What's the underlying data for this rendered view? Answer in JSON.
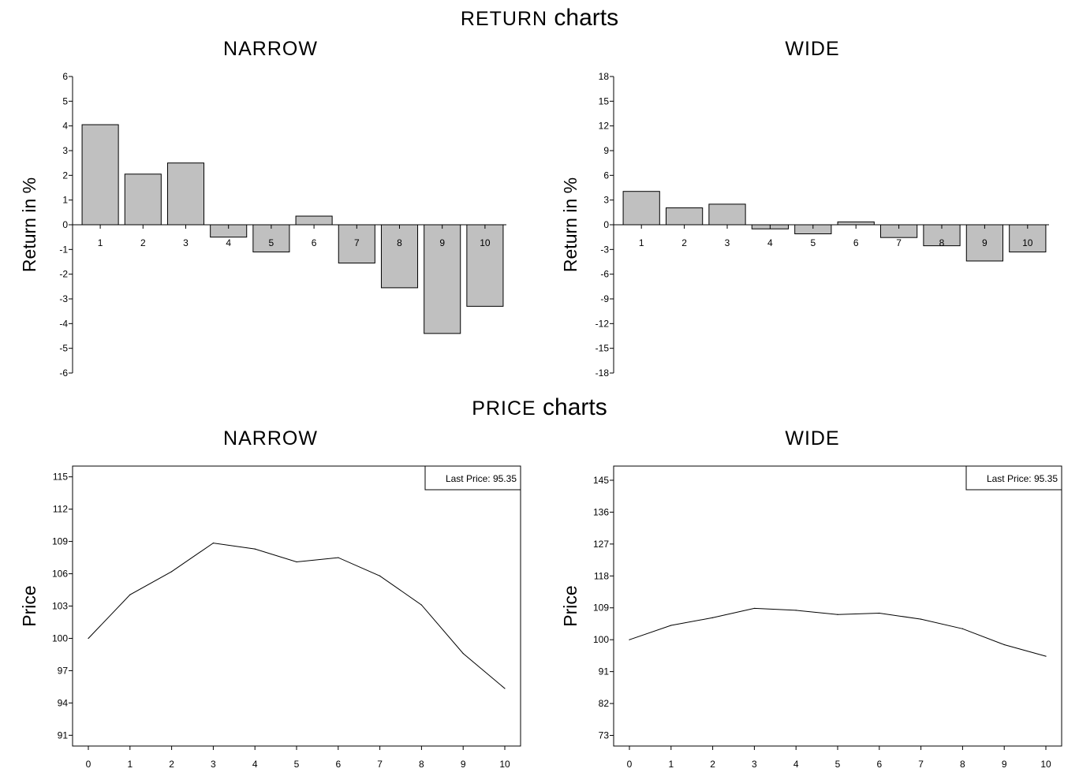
{
  "sections": {
    "returns": {
      "keyword": "RETURN",
      "suffix": "charts"
    },
    "prices": {
      "keyword": "PRICE",
      "suffix": "charts"
    }
  },
  "chart_data": [
    {
      "id": "return-narrow",
      "type": "bar",
      "title": "NARROW",
      "ylabel": "Return in %",
      "xlabel": "",
      "categories": [
        "1",
        "2",
        "3",
        "4",
        "5",
        "6",
        "7",
        "8",
        "9",
        "10"
      ],
      "values": [
        4.05,
        2.05,
        2.5,
        -0.5,
        -1.1,
        0.35,
        -1.55,
        -2.55,
        -4.4,
        -3.3
      ],
      "ylim": [
        -6,
        6
      ],
      "yticks": [
        6,
        5,
        4,
        3,
        2,
        1,
        0,
        -1,
        -2,
        -3,
        -4,
        -5,
        -6
      ],
      "bar_color": "#c0c0c0",
      "grid": false
    },
    {
      "id": "return-wide",
      "type": "bar",
      "title": "WIDE",
      "ylabel": "Return in %",
      "xlabel": "",
      "categories": [
        "1",
        "2",
        "3",
        "4",
        "5",
        "6",
        "7",
        "8",
        "9",
        "10"
      ],
      "values": [
        4.05,
        2.05,
        2.5,
        -0.5,
        -1.1,
        0.35,
        -1.55,
        -2.55,
        -4.4,
        -3.3
      ],
      "ylim": [
        -18,
        18
      ],
      "yticks": [
        18,
        15,
        12,
        9,
        6,
        3,
        0,
        -3,
        -6,
        -9,
        -12,
        -15,
        -18
      ],
      "bar_color": "#c0c0c0",
      "grid": false
    },
    {
      "id": "price-narrow",
      "type": "line",
      "title": "NARROW",
      "ylabel": "Price",
      "xlabel": "",
      "x": [
        0,
        1,
        2,
        3,
        4,
        5,
        6,
        7,
        8,
        9,
        10
      ],
      "y": [
        100,
        104.05,
        106.2,
        108.85,
        108.3,
        107.1,
        107.5,
        105.8,
        103.1,
        98.6,
        95.35
      ],
      "xlim": [
        0,
        10
      ],
      "ylim": [
        90,
        116
      ],
      "yticks": [
        115,
        112,
        109,
        106,
        103,
        100,
        97,
        94,
        91
      ],
      "legend": {
        "text": "Last Price: 95.35",
        "position": "top-right"
      },
      "grid": false
    },
    {
      "id": "price-wide",
      "type": "line",
      "title": "WIDE",
      "ylabel": "Price",
      "xlabel": "",
      "x": [
        0,
        1,
        2,
        3,
        4,
        5,
        6,
        7,
        8,
        9,
        10
      ],
      "y": [
        100,
        104.05,
        106.2,
        108.85,
        108.3,
        107.1,
        107.5,
        105.8,
        103.1,
        98.6,
        95.35
      ],
      "xlim": [
        0,
        10
      ],
      "ylim": [
        70,
        149
      ],
      "yticks": [
        145,
        136,
        127,
        118,
        109,
        100,
        91,
        82,
        73
      ],
      "legend": {
        "text": "Last Price: 95.35",
        "position": "top-right"
      },
      "grid": false
    }
  ]
}
